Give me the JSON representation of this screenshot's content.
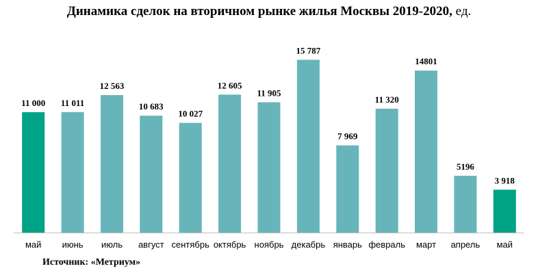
{
  "chart_data": {
    "type": "bar",
    "title": "Динамика сделок на вторичном рынке жилья Москвы 2019-2020,",
    "title_unit": "ед.",
    "categories": [
      "май",
      "июнь",
      "июль",
      "август",
      "сентябрь",
      "октябрь",
      "ноябрь",
      "декабрь",
      "январь",
      "февраль",
      "март",
      "апрель",
      "май"
    ],
    "values": [
      11000,
      11011,
      12563,
      10683,
      10027,
      12605,
      11905,
      15787,
      7969,
      11320,
      14801,
      5196,
      3918
    ],
    "data_labels": [
      "11 000",
      "11 011",
      "12 563",
      "10 683",
      "10 027",
      "12 605",
      "11 905",
      "15 787",
      "7 969",
      "11 320",
      "14801",
      "5196",
      "3 918"
    ],
    "highlight_indices": [
      0,
      12
    ],
    "colors": {
      "bar": "#67b5bb",
      "highlight": "#00a386",
      "axis": "#bfbfbf"
    },
    "ylim": [
      0,
      16000
    ],
    "grid": false,
    "legend": false,
    "xlabel": "",
    "ylabel": ""
  },
  "source": "Источник: «Метриум»"
}
